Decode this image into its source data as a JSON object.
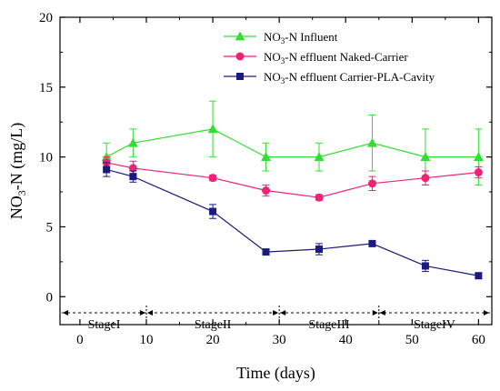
{
  "chart_data": {
    "type": "line",
    "xlabel": "Time (days)",
    "ylabel": {
      "main": "NO",
      "sub": "3",
      "rest": "-N (mg/L)"
    },
    "xlim": [
      -3,
      62
    ],
    "ylim": [
      -2,
      20
    ],
    "xticks": [
      0,
      10,
      20,
      30,
      40,
      50,
      60
    ],
    "yticks": [
      0,
      5,
      10,
      15,
      20
    ],
    "x": [
      4,
      8,
      20,
      28,
      36,
      44,
      52,
      60
    ],
    "legend_position": "top-right",
    "series": [
      {
        "name": {
          "main": "NO",
          "sub": "3",
          "rest": "-N Influent"
        },
        "color": "#33dd33",
        "marker": "triangle",
        "values": [
          10,
          11,
          12,
          10,
          10,
          11,
          10,
          10
        ],
        "errors": [
          1,
          1,
          2,
          1,
          1,
          2,
          2,
          2
        ]
      },
      {
        "name": {
          "main": "NO",
          "sub": "3",
          "rest": "-N effluent Naked-Carrier"
        },
        "color": "#ee2277",
        "marker": "circle",
        "values": [
          9.6,
          9.2,
          8.5,
          7.6,
          7.1,
          8.1,
          8.5,
          8.9
        ],
        "errors": [
          0.4,
          0.5,
          0.2,
          0.4,
          0.2,
          0.5,
          0.5,
          0.4
        ]
      },
      {
        "name": {
          "main": "NO",
          "sub": "3",
          "rest": "-N effluent Carrier-PLA-Cavity"
        },
        "color": "#1a1a80",
        "marker": "square",
        "values": [
          9.1,
          8.6,
          6.1,
          3.2,
          3.4,
          3.8,
          2.2,
          1.5
        ],
        "errors": [
          0.5,
          0.4,
          0.5,
          0.2,
          0.4,
          0.1,
          0.4,
          0.2
        ]
      }
    ],
    "stages": {
      "y": -1.15,
      "boundaries": [
        -3,
        10,
        30,
        45,
        62
      ],
      "labels": [
        "StageI",
        "StageII",
        "StageIII",
        "StageIV"
      ]
    }
  }
}
